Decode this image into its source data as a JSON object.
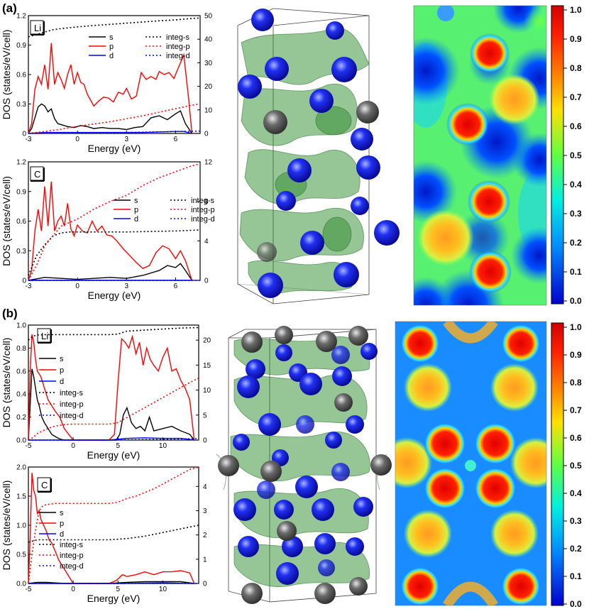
{
  "panel_labels": [
    "(a)",
    "(b)"
  ],
  "colors": {
    "s": "#000000",
    "p": "#ff0000",
    "d": "#0000ff",
    "iso": "#2e8b2e",
    "li_atom": "#1a1aff",
    "c_atom": "#555555"
  },
  "colorbar": {
    "ticks": [
      "1.0",
      "0.9",
      "0.8",
      "0.7",
      "0.6",
      "0.5",
      "0.4",
      "0.3",
      "0.2",
      "0.1",
      "0.0"
    ]
  },
  "chart_data": [
    {
      "type": "line",
      "panel": "(a)",
      "element": "Li",
      "xlabel": "Energy (eV)",
      "ylabel": "DOS (states/eV/cell)",
      "xlim": [
        -3,
        7.5
      ],
      "ylim": [
        0,
        1.2
      ],
      "y2lim": [
        0,
        50
      ],
      "xticks": [
        "-3",
        "0",
        "3",
        "6"
      ],
      "yticks": [
        "0",
        "0.3",
        "0.6",
        "0.9",
        "1.2"
      ],
      "y2ticks": [
        "0",
        "10",
        "20",
        "30",
        "40",
        "50"
      ],
      "legend": [
        "s",
        "p",
        "d",
        "integ-s",
        "integ-p",
        "integ-d"
      ],
      "series": [
        {
          "name": "s",
          "axis": "left",
          "x": [
            -3,
            -2.8,
            -2.6,
            -2.4,
            -2.2,
            -2,
            -1.8,
            -1.6,
            -1.4,
            -1.2,
            -1,
            -0.6,
            -0.2,
            0.2,
            0.6,
            1,
            1.5,
            2,
            2.5,
            3,
            3.5,
            4,
            4.5,
            5,
            5.5,
            6,
            6.3,
            6.6,
            7
          ],
          "y": [
            0,
            0.05,
            0.16,
            0.27,
            0.3,
            0.28,
            0.22,
            0.25,
            0.15,
            0.1,
            0.09,
            0.07,
            0.06,
            0.08,
            0.07,
            0.05,
            0.06,
            0.05,
            0.05,
            0.04,
            0.06,
            0.07,
            0.16,
            0.18,
            0.14,
            0.2,
            0.23,
            0.1,
            0
          ]
        },
        {
          "name": "p",
          "axis": "left",
          "x": [
            -3,
            -2.8,
            -2.6,
            -2.4,
            -2.2,
            -2,
            -1.8,
            -1.6,
            -1.4,
            -1.2,
            -1,
            -0.8,
            -0.6,
            -0.4,
            -0.2,
            0,
            0.2,
            0.4,
            0.6,
            0.8,
            1,
            1.3,
            1.6,
            1.9,
            2.2,
            2.5,
            2.8,
            3,
            3.3,
            3.6,
            3.9,
            4.2,
            4.5,
            4.8,
            5,
            5.3,
            5.6,
            5.9,
            6.2,
            6.5,
            6.8,
            7
          ],
          "y": [
            0,
            0.1,
            0.45,
            0.58,
            0.5,
            0.7,
            0.45,
            0.92,
            0.5,
            0.62,
            0.55,
            0.46,
            0.6,
            0.7,
            0.5,
            0.62,
            0.52,
            0.5,
            0.4,
            0.34,
            0.28,
            0.33,
            0.37,
            0.36,
            0.32,
            0.42,
            0.4,
            0.46,
            0.35,
            0.38,
            0.62,
            0.55,
            0.58,
            0.55,
            0.63,
            0.6,
            0.62,
            0.56,
            0.68,
            0.8,
            0.35,
            0
          ]
        },
        {
          "name": "d",
          "axis": "left",
          "x": [
            -3,
            -2,
            -1,
            0,
            1,
            2,
            3,
            4,
            5,
            6,
            6.5,
            7
          ],
          "y": [
            0,
            0.01,
            0.01,
            0.01,
            0.01,
            0.01,
            0.01,
            0.01,
            0.015,
            0.02,
            0.02,
            0
          ]
        },
        {
          "name": "integ-s",
          "axis": "right",
          "x": [
            -3,
            -2.5,
            -2,
            -1.5,
            -1,
            0,
            1,
            2,
            3,
            4,
            5,
            6,
            7,
            7.5
          ],
          "y": [
            41,
            42,
            43,
            44,
            44.5,
            45.2,
            45.8,
            46.3,
            46.8,
            47.3,
            47.8,
            48.2,
            48.8,
            49
          ]
        },
        {
          "name": "integ-p",
          "axis": "right",
          "x": [
            -3,
            -2,
            -1,
            0,
            1,
            2,
            3,
            4,
            5,
            6,
            7,
            7.5
          ],
          "y": [
            0,
            0.8,
            1.8,
            3,
            4,
            5,
            6.2,
            7.5,
            9,
            10.5,
            12,
            12.5
          ]
        },
        {
          "name": "integ-d",
          "axis": "right",
          "x": [
            -3,
            0,
            3,
            6,
            7.5
          ],
          "y": [
            0,
            0.2,
            0.4,
            0.8,
            1
          ]
        }
      ]
    },
    {
      "type": "line",
      "panel": "(a)",
      "element": "C",
      "xlabel": "Energy (eV)",
      "ylabel": "DOS (states/eV/cell)",
      "xlim": [
        -3,
        7.5
      ],
      "ylim": [
        0,
        1.2
      ],
      "y2lim": [
        0,
        12
      ],
      "xticks": [
        "-3",
        "0",
        "3",
        "6"
      ],
      "yticks": [
        "0",
        "0.3",
        "0.6",
        "0.9",
        "1.2"
      ],
      "y2ticks": [
        "0",
        "4",
        "8",
        "12"
      ],
      "legend": [
        "s",
        "p",
        "d",
        "integ-s",
        "integ-p",
        "integ-d"
      ],
      "series": [
        {
          "name": "s",
          "axis": "left",
          "x": [
            -3,
            -2,
            -1,
            0,
            1,
            2,
            3,
            4,
            5,
            5.5,
            6,
            6.3,
            6.6,
            7
          ],
          "y": [
            0,
            0.03,
            0.02,
            0.01,
            0.02,
            0.03,
            0.02,
            0.05,
            0.1,
            0.15,
            0.13,
            0.17,
            0.1,
            0
          ]
        },
        {
          "name": "p",
          "axis": "left",
          "x": [
            -3,
            -2.8,
            -2.6,
            -2.4,
            -2.2,
            -2,
            -1.8,
            -1.6,
            -1.4,
            -1.2,
            -1,
            -0.8,
            -0.6,
            -0.4,
            -0.2,
            0,
            0.3,
            0.6,
            0.9,
            1.2,
            1.5,
            1.8,
            2.1,
            2.4,
            2.8,
            3.2,
            3.6,
            4,
            4.4,
            4.8,
            5.2,
            5.6,
            6,
            6.3,
            6.6,
            7
          ],
          "y": [
            0,
            0.1,
            0.5,
            0.72,
            0.5,
            0.95,
            0.55,
            1.0,
            0.5,
            0.6,
            0.65,
            0.55,
            0.78,
            0.52,
            0.45,
            0.56,
            0.5,
            0.48,
            0.6,
            0.5,
            0.55,
            0.46,
            0.45,
            0.4,
            0.32,
            0.25,
            0.18,
            0.12,
            0.15,
            0.28,
            0.35,
            0.32,
            0.22,
            0.3,
            0.2,
            0
          ]
        },
        {
          "name": "d",
          "axis": "left",
          "x": [
            -3,
            7
          ],
          "y": [
            0,
            0
          ]
        },
        {
          "name": "integ-s",
          "axis": "right",
          "x": [
            -3,
            -2.5,
            -2,
            -1.5,
            -1,
            -0.5,
            0,
            3,
            6,
            7.5
          ],
          "y": [
            0.5,
            2.5,
            3.6,
            4.5,
            4.8,
            4.9,
            4.9,
            4.9,
            5,
            5.1
          ]
        },
        {
          "name": "integ-p",
          "axis": "right",
          "x": [
            -3,
            -2.5,
            -2,
            -1.5,
            -1,
            0,
            1,
            2,
            3,
            4,
            5,
            6,
            7,
            7.5
          ],
          "y": [
            0,
            1.5,
            3.5,
            4.5,
            5.5,
            6.2,
            7.2,
            8,
            8.6,
            9.6,
            10.4,
            11,
            11.6,
            11.8
          ]
        },
        {
          "name": "integ-d",
          "axis": "right",
          "x": [
            -3,
            7.5
          ],
          "y": [
            0,
            0
          ]
        }
      ]
    },
    {
      "type": "line",
      "panel": "(b)",
      "element": "Li",
      "xlabel": "Energy (eV)",
      "ylabel": "DOS (states/eV/cell)",
      "xlim": [
        -5,
        14
      ],
      "ylim": [
        0,
        1.0
      ],
      "y2lim": [
        0,
        23
      ],
      "xticks": [
        "-5",
        "0",
        "5",
        "10"
      ],
      "yticks": [
        "0.0",
        "0.2",
        "0.4",
        "0.6",
        "0.8",
        "1.0"
      ],
      "y2ticks": [
        "0",
        "5",
        "10",
        "15",
        "20"
      ],
      "legend": [
        "s",
        "p",
        "d",
        "integ-s",
        "integ-p",
        "integ-d"
      ],
      "series": [
        {
          "name": "s",
          "axis": "left",
          "x": [
            -5,
            -4.8,
            -4.6,
            -4.4,
            -4.2,
            -4,
            -3.8,
            -3.5,
            -3.2,
            -2.8,
            -2.4,
            -2,
            -1.5,
            -1,
            0,
            2,
            4,
            4.8,
            5.2,
            5.6,
            6,
            6.5,
            7,
            7.5,
            8,
            8.5,
            9,
            10,
            11,
            12,
            13,
            13.5
          ],
          "y": [
            0,
            0.3,
            0.62,
            0.55,
            0.45,
            0.35,
            0.3,
            0.2,
            0.15,
            0.1,
            0.05,
            0.03,
            0.01,
            0,
            0,
            0,
            0,
            0,
            0.05,
            0.22,
            0.28,
            0.15,
            0.1,
            0.12,
            0.08,
            0.2,
            0.08,
            0.1,
            0.12,
            0.08,
            0.05,
            0
          ]
        },
        {
          "name": "p",
          "axis": "left",
          "x": [
            -5,
            -4.8,
            -4.6,
            -4.4,
            -4.2,
            -4,
            -3.6,
            -3.2,
            -2.8,
            -2.4,
            -2,
            -1.5,
            -1,
            0,
            2,
            4,
            4.6,
            5,
            5.4,
            5.8,
            6.2,
            6.6,
            7,
            7.4,
            7.8,
            8.2,
            8.6,
            9,
            9.5,
            10,
            10.5,
            11,
            11.5,
            12,
            12.5,
            13,
            13.5
          ],
          "y": [
            0,
            0.6,
            0.92,
            0.85,
            0.7,
            0.6,
            0.55,
            0.45,
            0.35,
            0.3,
            0.25,
            0.2,
            0.1,
            0,
            0,
            0,
            0.05,
            0.5,
            0.88,
            0.85,
            0.8,
            0.9,
            0.75,
            0.85,
            0.65,
            0.8,
            0.7,
            0.65,
            0.6,
            0.72,
            0.8,
            0.6,
            0.62,
            0.52,
            0.45,
            0.35,
            0
          ]
        },
        {
          "name": "d",
          "axis": "left",
          "x": [
            -5,
            0,
            4,
            6,
            8,
            10,
            12,
            13.5
          ],
          "y": [
            0,
            0,
            0,
            0.015,
            0.02,
            0.015,
            0.015,
            0
          ]
        },
        {
          "name": "integ-s",
          "axis": "right",
          "x": [
            -5,
            -4.5,
            -4,
            -3,
            -2,
            0,
            4,
            5,
            6,
            8,
            10,
            12,
            14
          ],
          "y": [
            20,
            20.8,
            21,
            21.1,
            21.1,
            21.1,
            21.1,
            21.2,
            21.8,
            22,
            22.2,
            22.4,
            22.5
          ]
        },
        {
          "name": "integ-p",
          "axis": "right",
          "x": [
            -5,
            -4.5,
            -4,
            -3,
            -2,
            -1,
            0,
            4,
            5,
            6,
            7,
            8,
            9,
            10,
            11,
            12,
            13,
            14
          ],
          "y": [
            0,
            0.5,
            1.3,
            2.2,
            2.8,
            3.1,
            3.2,
            3.2,
            3.5,
            4.5,
            5.5,
            6.5,
            7.5,
            8.5,
            9.5,
            10.5,
            11.5,
            12.4
          ]
        },
        {
          "name": "integ-d",
          "axis": "right",
          "x": [
            -5,
            0,
            4,
            8,
            14
          ],
          "y": [
            0,
            0,
            0,
            0.1,
            0.3
          ]
        }
      ]
    },
    {
      "type": "line",
      "panel": "(b)",
      "element": "C",
      "xlabel": "Energy (eV)",
      "ylabel": "DOS (states/eV/cell)",
      "xlim": [
        -5,
        14
      ],
      "ylim": [
        0,
        2.0
      ],
      "y2lim": [
        0,
        4.8
      ],
      "xticks": [
        "-5",
        "0",
        "5",
        "10"
      ],
      "yticks": [
        "0.0",
        "0.5",
        "1.0",
        "1.5",
        "2.0"
      ],
      "y2ticks": [
        "0",
        "1",
        "2",
        "3",
        "4"
      ],
      "legend": [
        "s",
        "p",
        "d",
        "integ-s",
        "integ-p",
        "integ-d"
      ],
      "series": [
        {
          "name": "s",
          "axis": "left",
          "x": [
            -5,
            -4,
            -3,
            -2,
            -1,
            0,
            2,
            4,
            6,
            8,
            10,
            12,
            13.5
          ],
          "y": [
            0,
            0.02,
            0.02,
            0.01,
            0,
            0,
            0,
            0,
            0.02,
            0.03,
            0.03,
            0.03,
            0
          ]
        },
        {
          "name": "p",
          "axis": "left",
          "x": [
            -5,
            -4.8,
            -4.6,
            -4.4,
            -4.2,
            -4,
            -3.8,
            -3.6,
            -3.3,
            -3,
            -2.7,
            -2.4,
            -2,
            -1.6,
            -1.2,
            -0.8,
            -0.4,
            0,
            2,
            4,
            4.8,
            5.5,
            6,
            7,
            8,
            9,
            10,
            11,
            12,
            13,
            13.5
          ],
          "y": [
            0,
            0.8,
            1.9,
            1.6,
            1.5,
            1.2,
            1.25,
            1.1,
            1.0,
            0.9,
            0.75,
            0.7,
            0.55,
            0.4,
            0.3,
            0.2,
            0.1,
            0,
            0,
            0,
            0.05,
            0.15,
            0.12,
            0.15,
            0.2,
            0.15,
            0.2,
            0.2,
            0.22,
            0.18,
            0
          ]
        },
        {
          "name": "d",
          "axis": "left",
          "x": [
            -5,
            0,
            5,
            10,
            13.5
          ],
          "y": [
            0,
            0,
            0,
            0.01,
            0
          ]
        },
        {
          "name": "integ-s",
          "axis": "right",
          "x": [
            -5,
            -4.5,
            -4,
            -3,
            0,
            4,
            6,
            8,
            10,
            12,
            14
          ],
          "y": [
            1.7,
            1.75,
            1.8,
            1.8,
            1.8,
            1.8,
            1.85,
            1.95,
            2.1,
            2.25,
            2.4
          ]
        },
        {
          "name": "integ-p",
          "axis": "right",
          "x": [
            -5,
            -4.6,
            -4.2,
            -3.8,
            -3.4,
            -3,
            -2,
            -1,
            0,
            4,
            5,
            6,
            7,
            8,
            9,
            10,
            11,
            12,
            13,
            14
          ],
          "y": [
            0,
            1.2,
            2.2,
            3.0,
            3.2,
            3.25,
            3.3,
            3.3,
            3.3,
            3.3,
            3.35,
            3.5,
            3.6,
            3.75,
            3.9,
            4.1,
            4.3,
            4.5,
            4.7,
            4.8
          ]
        },
        {
          "name": "integ-d",
          "axis": "right",
          "x": [
            -5,
            14
          ],
          "y": [
            0,
            0
          ]
        }
      ]
    }
  ]
}
